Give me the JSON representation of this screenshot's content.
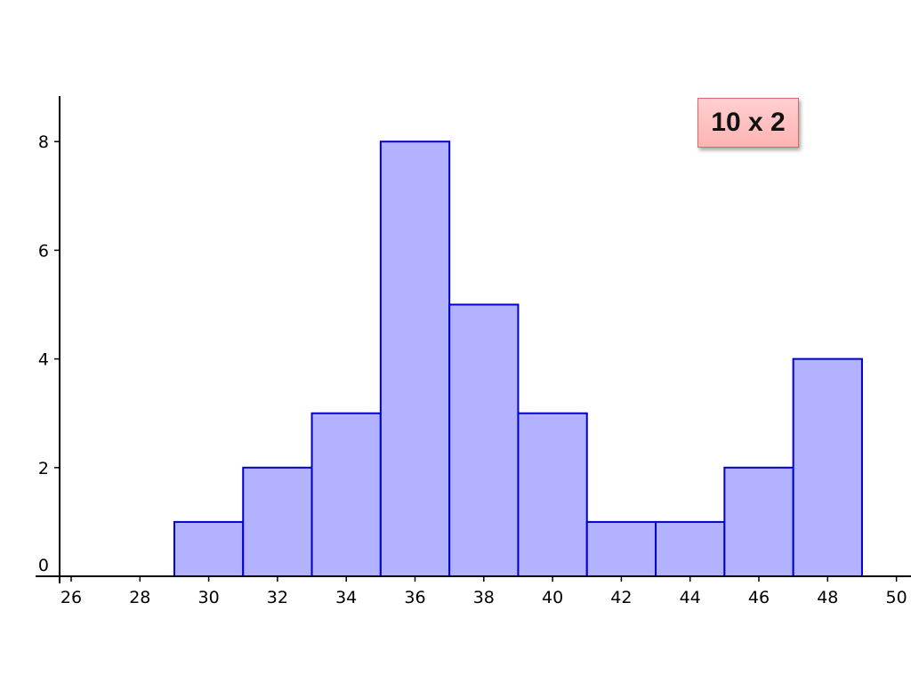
{
  "annotation": {
    "text": "10 x 2"
  },
  "chart_data": {
    "type": "bar",
    "subtype": "histogram",
    "bins": [
      {
        "start": 29,
        "end": 31,
        "count": 1
      },
      {
        "start": 31,
        "end": 33,
        "count": 2
      },
      {
        "start": 33,
        "end": 35,
        "count": 3
      },
      {
        "start": 35,
        "end": 37,
        "count": 8
      },
      {
        "start": 37,
        "end": 39,
        "count": 5
      },
      {
        "start": 39,
        "end": 41,
        "count": 3
      },
      {
        "start": 41,
        "end": 43,
        "count": 1
      },
      {
        "start": 43,
        "end": 45,
        "count": 1
      },
      {
        "start": 45,
        "end": 47,
        "count": 2
      },
      {
        "start": 47,
        "end": 49,
        "count": 4
      }
    ],
    "xticks": [
      "26",
      "28",
      "30",
      "32",
      "34",
      "36",
      "38",
      "40",
      "42",
      "44",
      "46",
      "48",
      "50"
    ],
    "yticks": [
      "0",
      "2",
      "4",
      "6",
      "8"
    ],
    "xlim": [
      25,
      51
    ],
    "ylim": [
      0,
      8.8
    ],
    "bar_fill": "#b2b2ff",
    "bar_stroke": "#0000cc",
    "grid": false,
    "title": "",
    "xlabel": "",
    "ylabel": ""
  }
}
